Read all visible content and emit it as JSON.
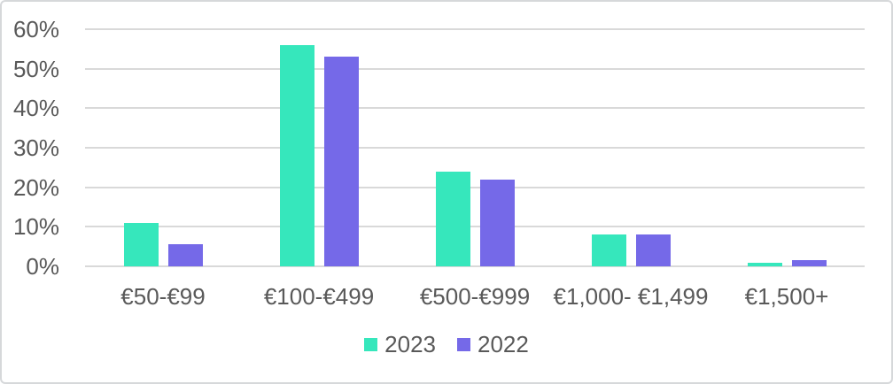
{
  "chart_data": {
    "type": "bar",
    "categories": [
      "€50-€99",
      "€100-€499",
      "€500-€999",
      "€1,000- €1,499",
      "€1,500+"
    ],
    "series": [
      {
        "name": "2023",
        "color": "#36e7bc",
        "values": [
          11,
          56,
          24,
          8,
          1
        ]
      },
      {
        "name": "2022",
        "color": "#7569e8",
        "values": [
          5.5,
          53,
          22,
          8,
          1.5
        ]
      }
    ],
    "title": "",
    "xlabel": "",
    "ylabel": "",
    "ylim": [
      0,
      60
    ],
    "yticks": [
      0,
      10,
      20,
      30,
      40,
      50,
      60
    ],
    "ytick_suffix": "%",
    "grid": true,
    "legend_position": "bottom"
  },
  "colors": {
    "gridline": "#d9d9d9",
    "axis_text": "#595959",
    "background": "#ffffff",
    "frame_border": "#d6d8da"
  }
}
